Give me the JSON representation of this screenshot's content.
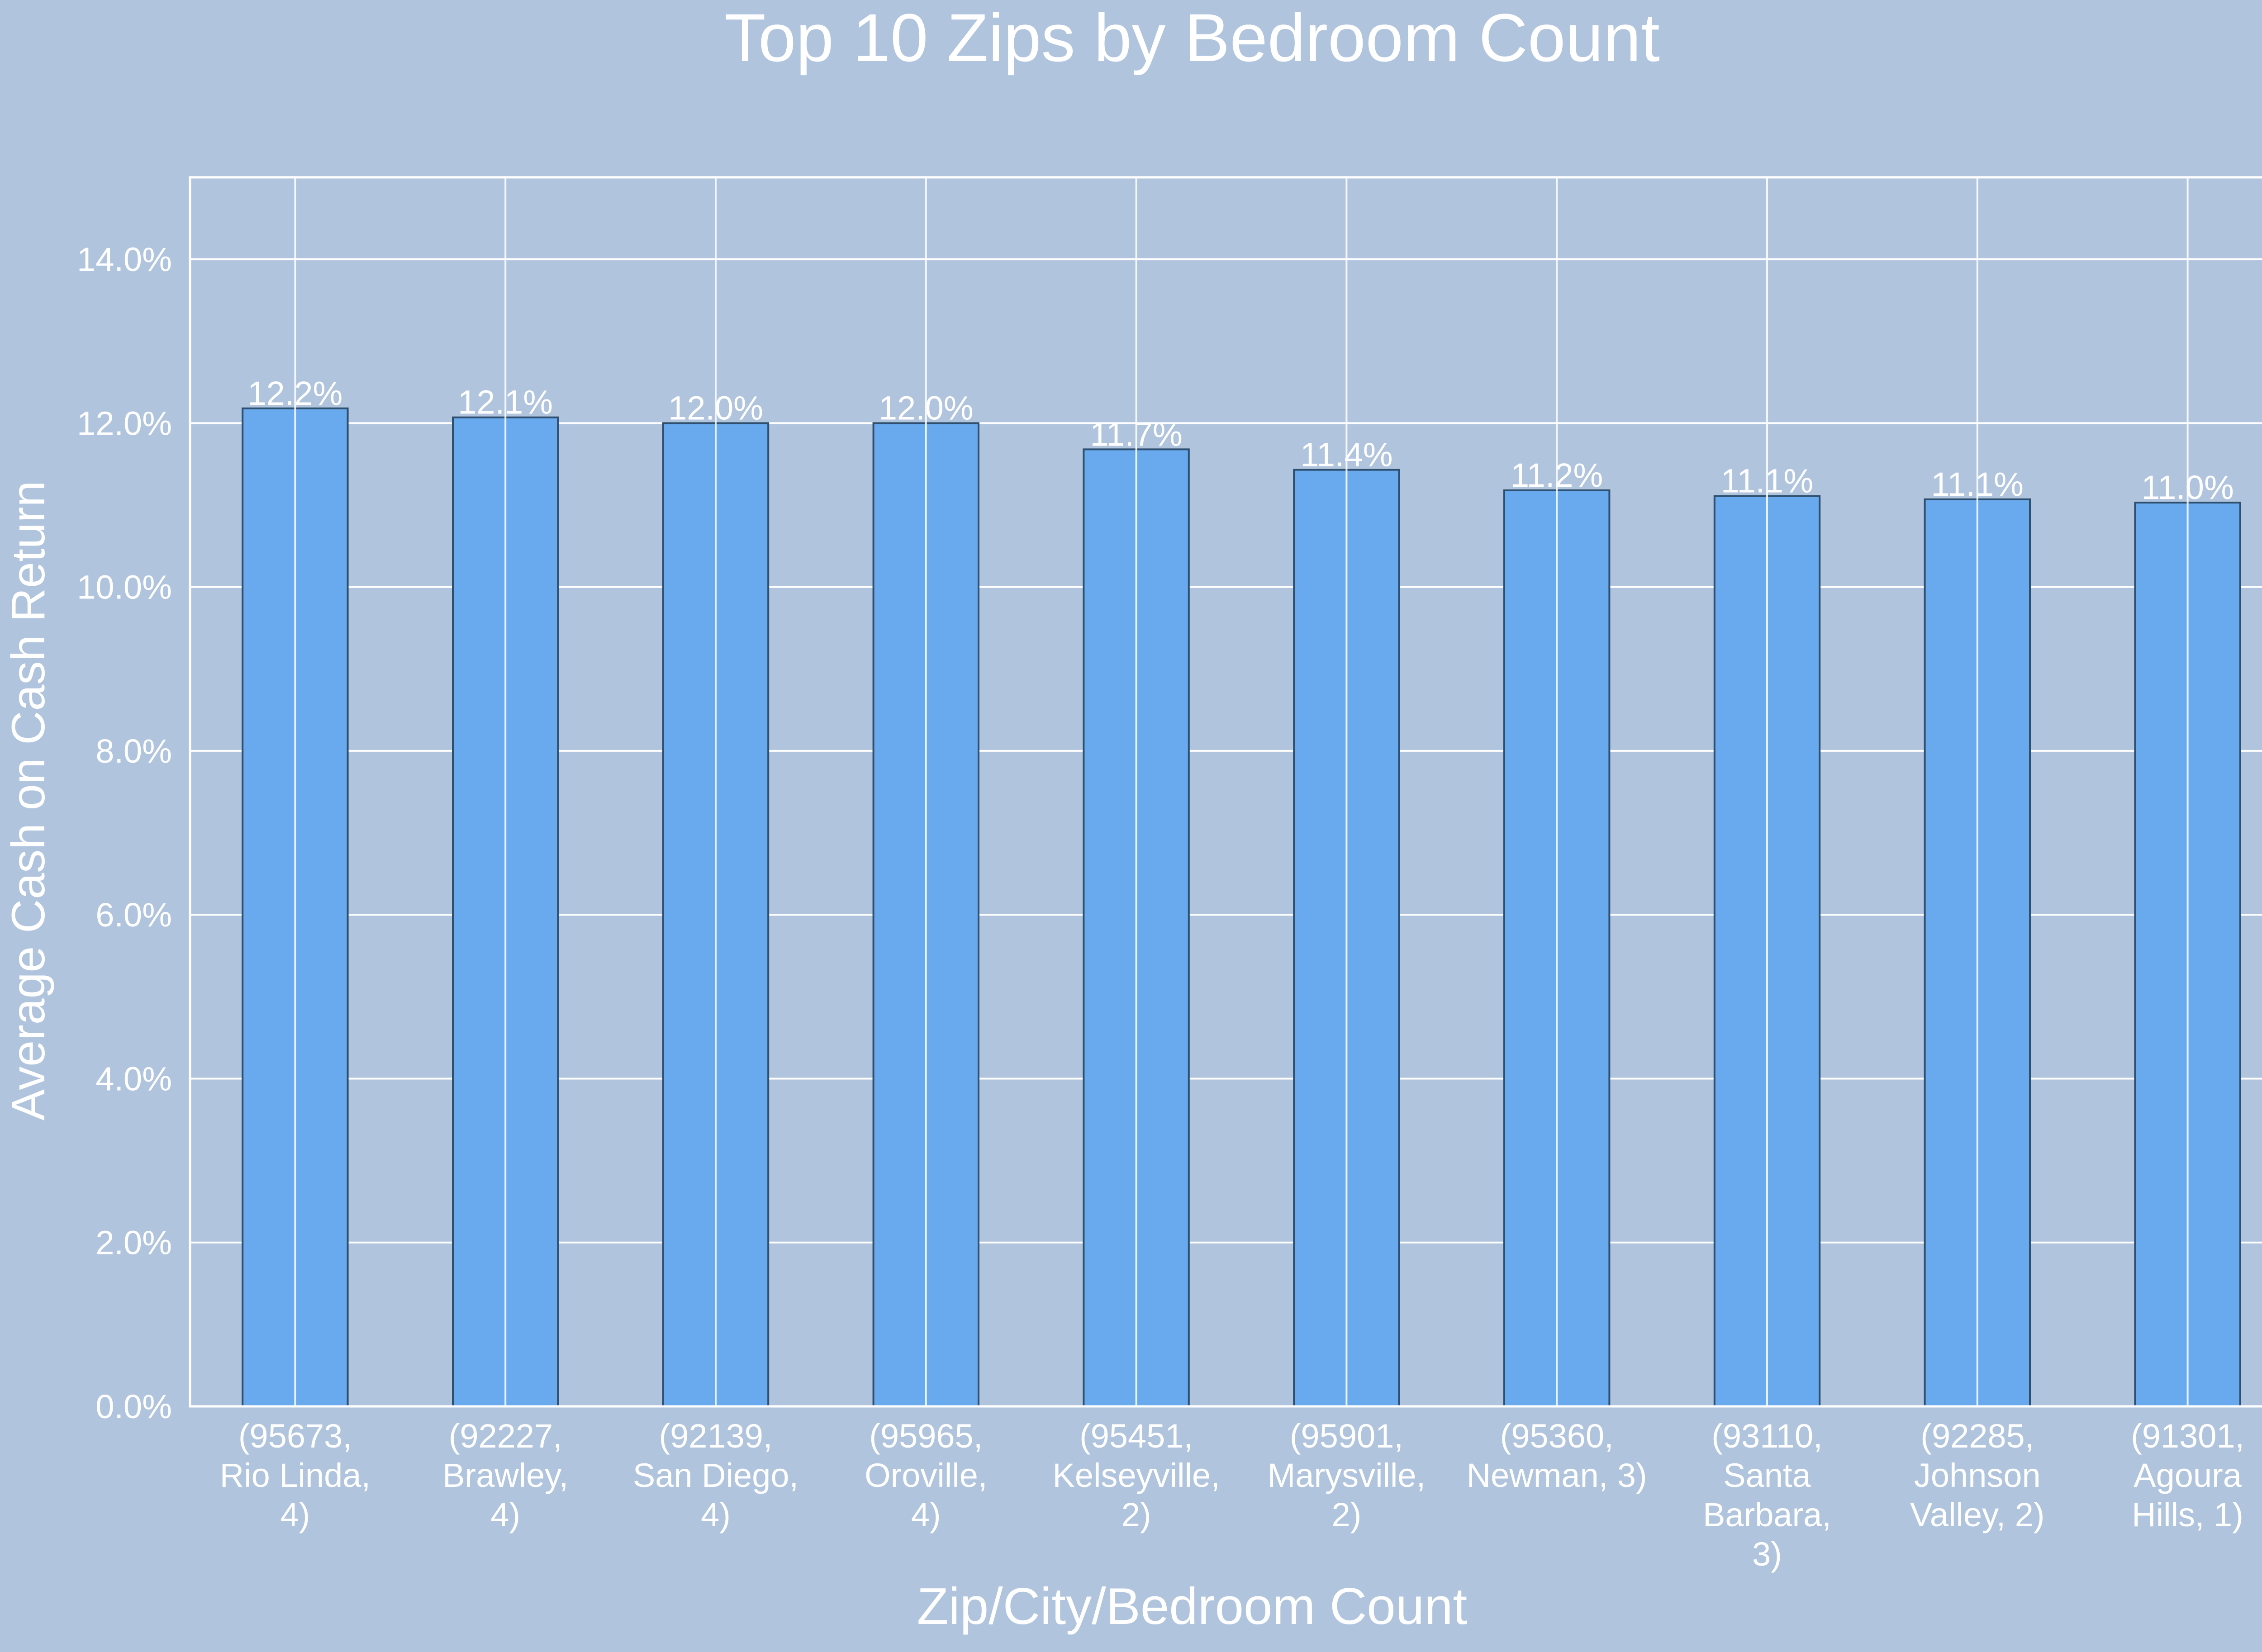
{
  "chart_data": {
    "type": "bar",
    "title": "Top 10 Zips by Bedroom Count",
    "xlabel": "Zip/City/Bedroom Count",
    "ylabel": "Average Cash on Cash Return",
    "ylim": [
      0,
      15
    ],
    "yticks": [
      0,
      2,
      4,
      6,
      8,
      10,
      12,
      14
    ],
    "ytick_labels": [
      "0.0%",
      "2.0%",
      "4.0%",
      "6.0%",
      "8.0%",
      "10.0%",
      "12.0%",
      "14.0%"
    ],
    "grid": true,
    "categories": [
      "(95673, Rio Linda, 4)",
      "(92227, Brawley, 4)",
      "(92139, San Diego, 4)",
      "(95965, Oroville, 4)",
      "(95451, Kelseyville, 2)",
      "(95901, Marysville, 2)",
      "(95360, Newman, 3)",
      "(93110, Santa Barbara, 3)",
      "(92285, Johnson Valley, 2)",
      "(91301, Agoura Hills, 1)"
    ],
    "category_label_lines": [
      [
        "(95673,",
        "Rio Linda,",
        "4)"
      ],
      [
        "(92227,",
        "Brawley,",
        "4)"
      ],
      [
        "(92139,",
        "San Diego,",
        "4)"
      ],
      [
        "(95965,",
        "Oroville,",
        "4)"
      ],
      [
        "(95451,",
        "Kelseyville,",
        "2)"
      ],
      [
        "(95901,",
        "Marysville,",
        "2)"
      ],
      [
        "(95360,",
        "Newman, 3)"
      ],
      [
        "(93110,",
        "Santa",
        "Barbara,",
        "3)"
      ],
      [
        "(92285,",
        "Johnson",
        "Valley, 2)"
      ],
      [
        "(91301,",
        "Agoura",
        "Hills, 1)"
      ]
    ],
    "values": [
      12.18,
      12.07,
      12.0,
      12.0,
      11.68,
      11.43,
      11.18,
      11.11,
      11.07,
      11.03
    ],
    "data_labels": [
      "12.2%",
      "12.1%",
      "12.0%",
      "12.0%",
      "11.7%",
      "11.4%",
      "11.2%",
      "11.1%",
      "11.1%",
      "11.0%"
    ],
    "colors": {
      "background": "#b0c4de",
      "bar": "#69a9ed",
      "bar_edge": "#2f4f6f",
      "grid": "#ffffff",
      "text": "#ffffff"
    }
  }
}
